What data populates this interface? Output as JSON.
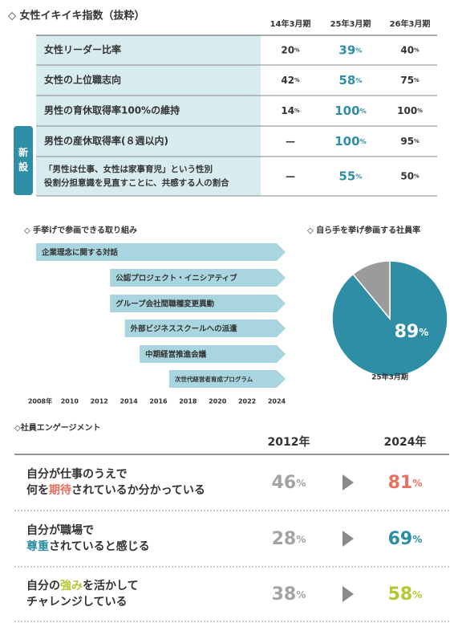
{
  "table": {
    "title": "◇ 女性イキイキ指数（抜粋）",
    "unit": "%",
    "tag": "新設",
    "columns": [
      "14年3月期",
      "25年3月期",
      "26年3月期"
    ],
    "rows": [
      {
        "label": [
          "女性リーダー比率"
        ],
        "values": [
          20,
          39,
          40
        ]
      },
      {
        "label": [
          "女性の上位職志向"
        ],
        "values": [
          42,
          58,
          75
        ]
      },
      {
        "label": [
          "男性の育休取得率100%の維持"
        ],
        "values": [
          14,
          100,
          100
        ]
      },
      {
        "label": [
          "男性の産休取得率(８週以内)"
        ],
        "values": [
          "—",
          100,
          95
        ]
      },
      {
        "label": [
          "「男性は仕事、女性は家事育児」という性別",
          "役割分担意識を見直すことに、共感する人の割合"
        ],
        "values": [
          "—",
          55,
          50
        ]
      }
    ]
  },
  "chart_data": [
    {
      "type": "timeline",
      "title": "◇ 手挙げで参画できる取り組み",
      "color": "#a8d5df",
      "categories": [
        "企業理念に関する対話",
        "公認プロジェクト・イニシアティブ",
        "グループ会社間職種変更異動",
        "外部ビジネススクールへの派遣",
        "中期経営推進会議",
        "次世代経営者育成プログラム"
      ],
      "values": [
        2008,
        2013,
        2013,
        2014,
        2015,
        2017
      ],
      "xlim": [
        2008,
        2024
      ],
      "xticks": [
        {
          "value": 2008,
          "label": "2008年"
        },
        2010,
        2012,
        2014,
        2016,
        2018,
        2020,
        2022,
        2024
      ]
    },
    {
      "type": "pie",
      "title": "◇ 自ら手を挙げ参画する社員率",
      "subtitle": "25年3月期",
      "unit": "%",
      "values": [
        89,
        11
      ],
      "colors": [
        "#2e8ea5",
        "#9b9b9b"
      ]
    }
  ],
  "engagement": {
    "title": "◇社員エンゲージメント",
    "columns": [
      "2012年",
      "2024年"
    ],
    "unit": "%",
    "rows": [
      {
        "lines": [
          [
            {
              "text": "自分が仕事のうえで"
            }
          ],
          [
            {
              "text": "何を"
            },
            {
              "text": "期待",
              "color": "#e8705f"
            },
            {
              "text": "されているか分かっている"
            }
          ]
        ],
        "before": 46,
        "after": 81,
        "color": "#e8705f"
      },
      {
        "lines": [
          [
            {
              "text": "自分が職場で"
            }
          ],
          [
            {
              "text": "尊重",
              "color": "#2e8ea5"
            },
            {
              "text": "されていると感じる"
            }
          ]
        ],
        "before": 28,
        "after": 69,
        "color": "#2e8ea5"
      },
      {
        "lines": [
          [
            {
              "text": "自分の"
            },
            {
              "text": "強み",
              "color": "#b3c832"
            },
            {
              "text": "を活かして"
            }
          ],
          [
            {
              "text": "チャレンジしている"
            }
          ]
        ],
        "before": 38,
        "after": 58,
        "color": "#b3c832"
      }
    ]
  }
}
